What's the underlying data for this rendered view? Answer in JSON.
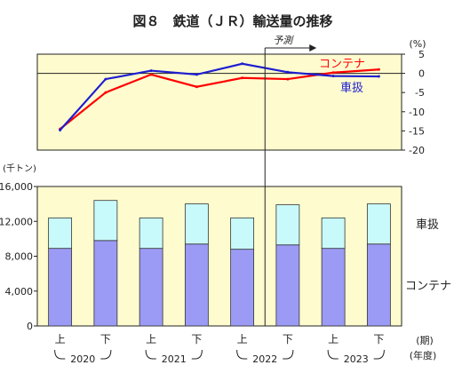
{
  "chart_data": [
    {
      "type": "line",
      "title": "図８　鉄道（ＪＲ）輸送量の推移",
      "forecast_label": "予測",
      "unit_label": "(%)",
      "categories": [
        "上",
        "下",
        "上",
        "下",
        "上",
        "下",
        "上",
        "下"
      ],
      "ylim": [
        -20,
        5
      ],
      "ticks": [
        5,
        0,
        -5,
        -10,
        -15,
        -20
      ],
      "series": [
        {
          "name": "コンテナ",
          "color": "#ff0000",
          "values": [
            -14.5,
            -5,
            -0.3,
            -3.5,
            -1.2,
            -1.5,
            0.2,
            1.0
          ]
        },
        {
          "name": "車扱",
          "color": "#1f1fd0",
          "values": [
            -14.8,
            -1.5,
            0.7,
            -0.3,
            2.5,
            0.3,
            -0.7,
            -0.8
          ]
        }
      ]
    },
    {
      "type": "bar",
      "unit_label": "(千トン)",
      "categories": [
        "上",
        "下",
        "上",
        "下",
        "上",
        "下",
        "上",
        "下"
      ],
      "ylim": [
        0,
        16000
      ],
      "ticks": [
        {
          "value": 16000,
          "label": "16,000"
        },
        {
          "value": 12000,
          "label": "12,000"
        },
        {
          "value": 8000,
          "label": "8,000"
        },
        {
          "value": 4000,
          "label": "4,000"
        },
        {
          "value": 0,
          "label": "0"
        }
      ],
      "series": [
        {
          "name": "コンテナ",
          "color": "#9b9bf5",
          "values": [
            8900,
            9800,
            8900,
            9400,
            8800,
            9300,
            8900,
            9400
          ]
        },
        {
          "name": "車扱",
          "color": "#c9fafb",
          "values": [
            3500,
            4600,
            3500,
            4600,
            3600,
            4600,
            3500,
            4600
          ]
        }
      ],
      "period_label": "(期)",
      "year_label": "(年度)",
      "years": [
        "2020",
        "2021",
        "2022",
        "2023"
      ]
    }
  ]
}
